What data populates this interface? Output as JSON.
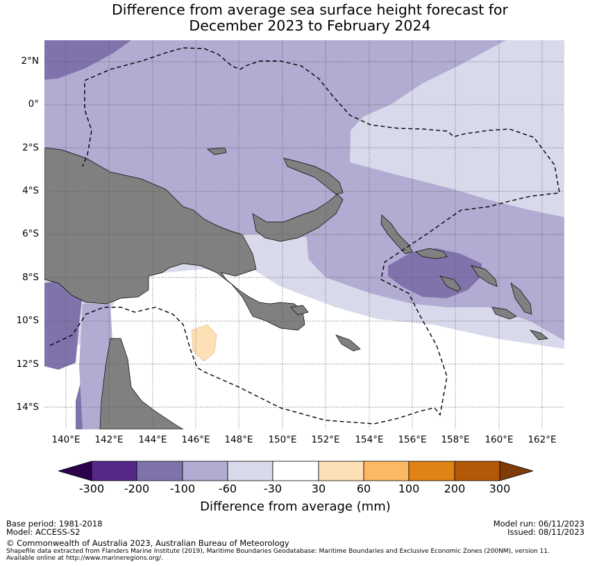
{
  "title": {
    "line1": "Difference from average sea surface height forecast for",
    "line2": "December 2023 to February 2024"
  },
  "map": {
    "lat_labels": [
      "2°N",
      "0°",
      "2°S",
      "4°S",
      "6°S",
      "8°S",
      "10°S",
      "12°S",
      "14°S"
    ],
    "lon_labels": [
      "140°E",
      "142°E",
      "144°E",
      "146°E",
      "148°E",
      "150°E",
      "152°E",
      "154°E",
      "156°E",
      "158°E",
      "160°E",
      "162°E"
    ],
    "lat_range": [
      -15,
      3
    ],
    "lon_range": [
      139,
      163
    ],
    "land_color": "#808080",
    "gridlines": true,
    "eez_boundary": "dashed"
  },
  "colorbar": {
    "title": "Difference from average (mm)",
    "ticks": [
      "-300",
      "-200",
      "-100",
      "-60",
      "-30",
      "30",
      "60",
      "100",
      "200",
      "300"
    ],
    "colors": [
      "#2d004b",
      "#542788",
      "#8073ac",
      "#b2abd2",
      "#d8daeb",
      "#ffffff",
      "#fee0b6",
      "#fdb863",
      "#e08214",
      "#b35806",
      "#7f3b08"
    ]
  },
  "footer": {
    "base_period": "Base period: 1981-2018",
    "model": "Model: ACCESS-S2",
    "model_run": "Model run: 06/11/2023",
    "issued": "Issued: 08/11/2023",
    "copyright": "© Commonwealth of Australia 2023, Australian Bureau of Meteorology",
    "shapefile_line1": "Shapefile data extracted from Flanders Marine Institute (2019), Maritime Boundaries Geodatabase: Maritime Boundaries and Exclusive Economic Zones (200NM), version 11.",
    "shapefile_line2": "Available online at http://www.marineregions.org/."
  }
}
